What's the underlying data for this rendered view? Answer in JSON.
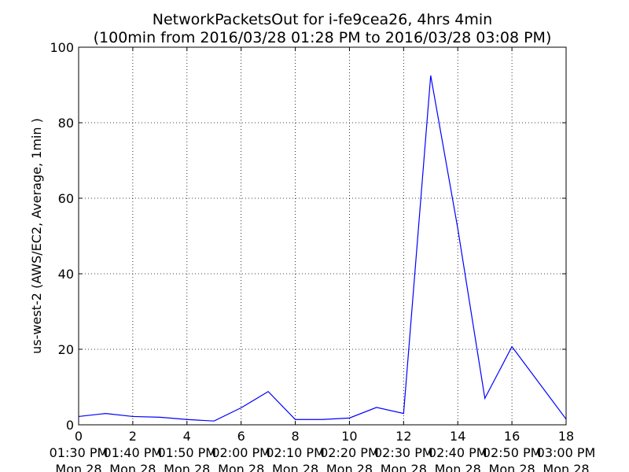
{
  "chart_data": {
    "type": "line",
    "title_line1": "NetworkPacketsOut for i-fe9cea26, 4hrs 4min",
    "title_line2": "(100min from 2016/03/28 01:28 PM to 2016/03/28 03:08 PM)",
    "xlabel": "",
    "ylabel": "us-west-2 (AWS/EC2, Average, 1min )",
    "xlim": [
      0,
      18
    ],
    "ylim": [
      0,
      100
    ],
    "grid": true,
    "x_ticks": [
      0,
      2,
      4,
      6,
      8,
      10,
      12,
      14,
      16,
      18
    ],
    "y_ticks": [
      0,
      20,
      40,
      60,
      80,
      100
    ],
    "date_ticks": [
      {
        "x": 0,
        "time": "01:30 PM",
        "date": "Mon 28"
      },
      {
        "x": 1,
        "time": "01:40 PM",
        "date": "Mon 28"
      },
      {
        "x": 2,
        "time": "01:50 PM",
        "date": "Mon 28"
      },
      {
        "x": 3,
        "time": "02:00 PM",
        "date": "Mon 28"
      },
      {
        "x": 4,
        "time": "02:10 PM",
        "date": "Mon 28"
      },
      {
        "x": 5,
        "time": "02:20 PM",
        "date": "Mon 28"
      },
      {
        "x": 6,
        "time": "02:30 PM",
        "date": "Mon 28"
      },
      {
        "x": 7,
        "time": "02:40 PM",
        "date": "Mon 28"
      },
      {
        "x": 8,
        "time": "02:50 PM",
        "date": "Mon 28"
      },
      {
        "x": 9,
        "time": "03:00 PM",
        "date": "Mon 28"
      }
    ],
    "series": [
      {
        "color": "#0000ff",
        "x": [
          0,
          1,
          2,
          3,
          4,
          5,
          6,
          7,
          8,
          9,
          10,
          11,
          12,
          13,
          14,
          15,
          16,
          18
        ],
        "y": [
          2.2,
          3.0,
          2.2,
          2.0,
          1.4,
          1.0,
          4.5,
          8.8,
          1.4,
          1.4,
          1.8,
          4.6,
          3.0,
          92.5,
          52.0,
          7.0,
          20.7,
          1.5
        ]
      }
    ]
  }
}
